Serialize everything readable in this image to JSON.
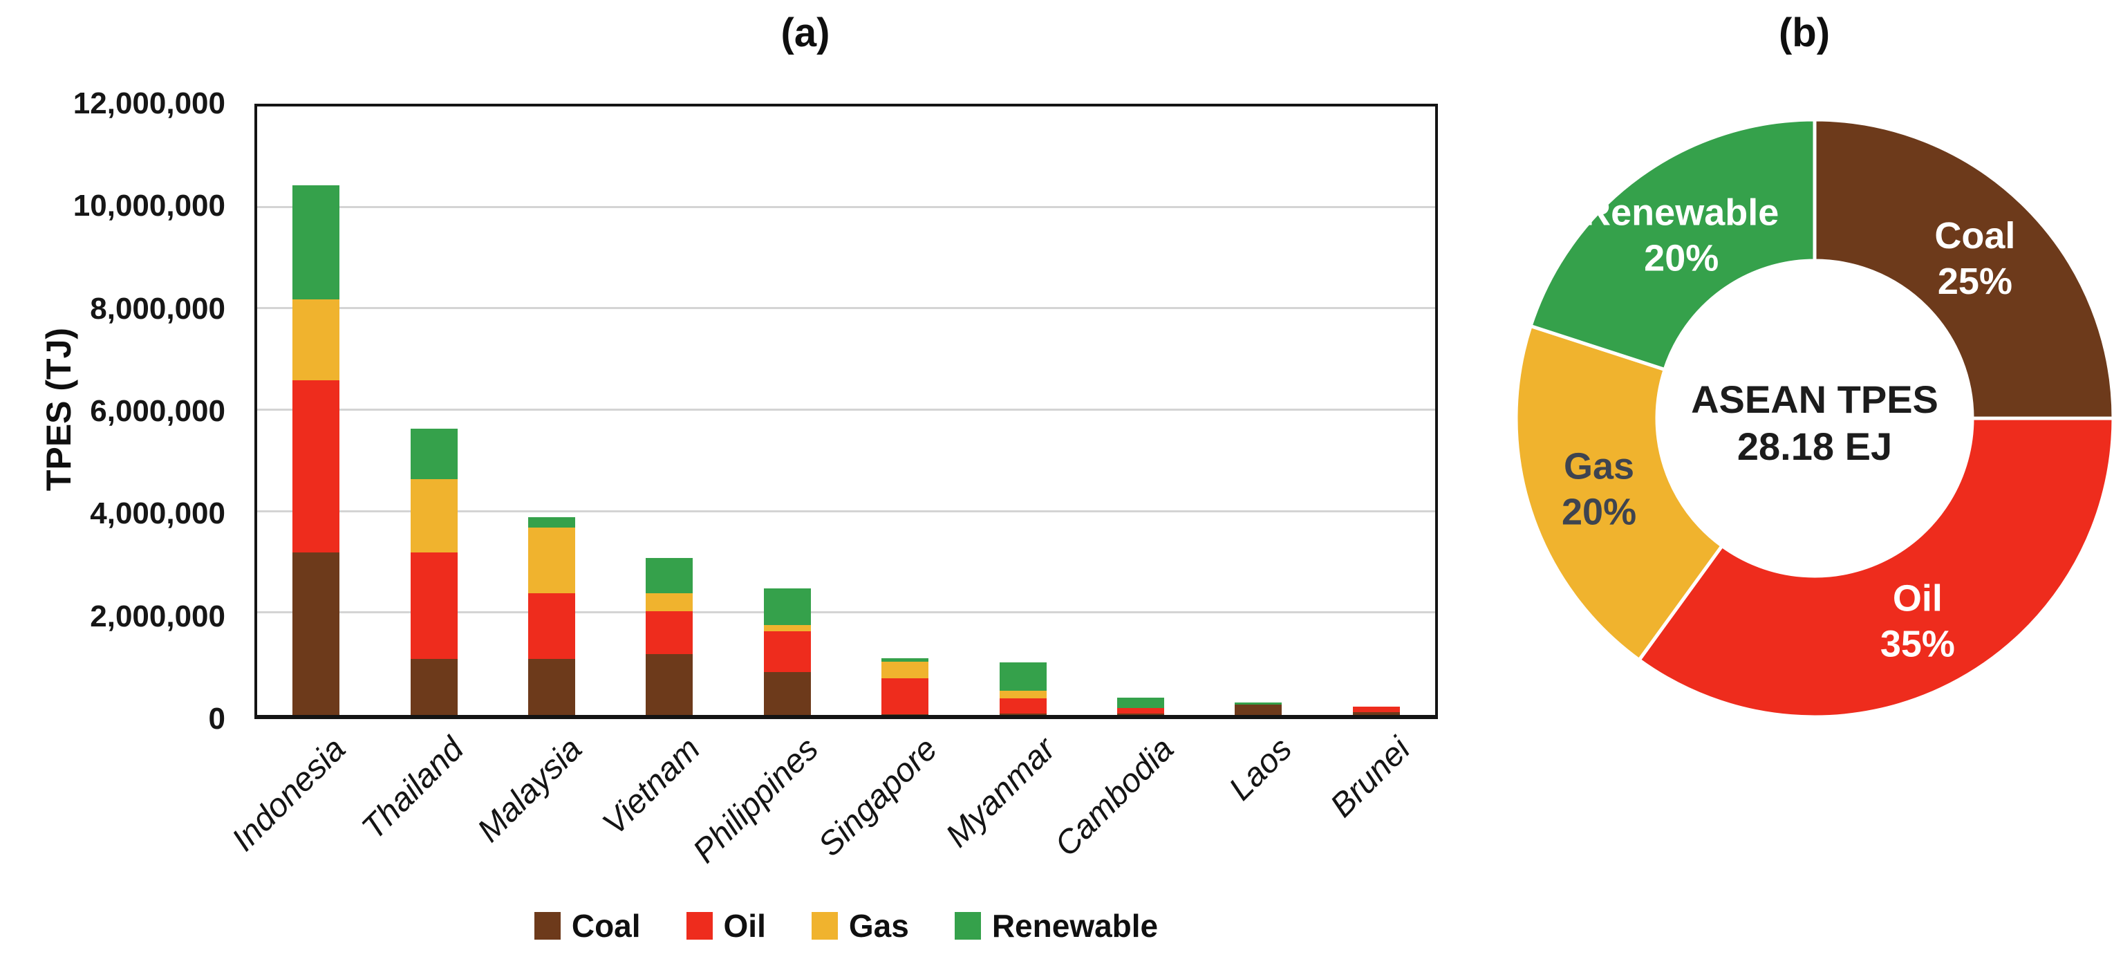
{
  "figure": {
    "panel_a_label": "(a)",
    "panel_b_label": "(b)"
  },
  "colors": {
    "coal": "#6d3a1b",
    "oil": "#ee2c1d",
    "gas": "#f0b32e",
    "renewable": "#35a14b",
    "gridline": "#d4d4d4",
    "axis": "#141414",
    "gas_label_text": "#3e4450",
    "white_label_text": "#ffffff"
  },
  "chart_data": [
    {
      "type": "bar",
      "stacked": true,
      "title": "(a)",
      "xlabel": "",
      "ylabel": "TPES (TJ)",
      "ylim": [
        0,
        12000000
      ],
      "ytick_interval": 2000000,
      "ytick_labels": [
        "0",
        "2,000,000",
        "4,000,000",
        "6,000,000",
        "8,000,000",
        "10,000,000",
        "12,000,000"
      ],
      "grid": true,
      "legend_position": "bottom",
      "categories": [
        "Indonesia",
        "Thailand",
        "Malaysia",
        "Vietnam",
        "Philippines",
        "Singapore",
        "Myanmar",
        "Cambodia",
        "Laos",
        "Brunei"
      ],
      "series": [
        {
          "name": "Coal",
          "color_key": "coal",
          "values": [
            3200000,
            1100000,
            1100000,
            1200000,
            850000,
            20000,
            30000,
            30000,
            200000,
            50000
          ]
        },
        {
          "name": "Oil",
          "color_key": "oil",
          "values": [
            3400000,
            2100000,
            1300000,
            850000,
            800000,
            700000,
            300000,
            110000,
            0,
            120000
          ]
        },
        {
          "name": "Gas",
          "color_key": "gas",
          "values": [
            1600000,
            1450000,
            1300000,
            350000,
            120000,
            330000,
            150000,
            0,
            0,
            0
          ]
        },
        {
          "name": "Renewable",
          "color_key": "renewable",
          "values": [
            2250000,
            1000000,
            200000,
            700000,
            730000,
            70000,
            550000,
            200000,
            50000,
            0
          ]
        }
      ]
    },
    {
      "type": "pie",
      "subtype": "donut",
      "title": "(b)",
      "center_label_line1": "ASEAN TPES",
      "center_label_line2": "28.18 EJ",
      "start_angle_deg": 0,
      "direction": "clockwise",
      "slices": [
        {
          "label": "Coal",
          "pct": 25,
          "pct_label": "25%",
          "color_key": "coal",
          "text_color": "#ffffff"
        },
        {
          "label": "Oil",
          "pct": 35,
          "pct_label": "35%",
          "color_key": "oil",
          "text_color": "#ffffff"
        },
        {
          "label": "Gas",
          "pct": 20,
          "pct_label": "20%",
          "color_key": "gas",
          "text_color": "#3e4450"
        },
        {
          "label": "Renewable",
          "pct": 20,
          "pct_label": "20%",
          "color_key": "renewable",
          "text_color": "#ffffff"
        }
      ]
    }
  ],
  "legend": {
    "items": [
      "Coal",
      "Oil",
      "Gas",
      "Renewable"
    ]
  }
}
